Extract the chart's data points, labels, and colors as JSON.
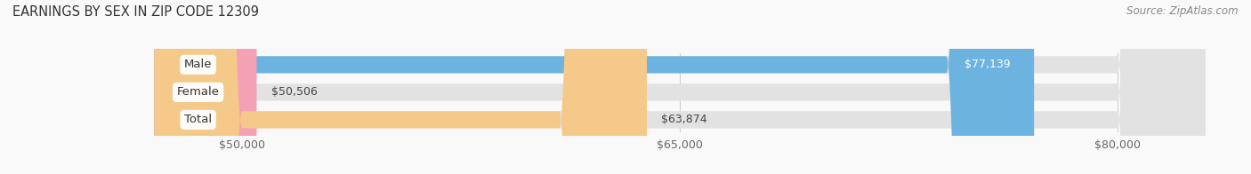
{
  "title": "EARNINGS BY SEX IN ZIP CODE 12309",
  "source": "Source: ZipAtlas.com",
  "categories": [
    "Male",
    "Female",
    "Total"
  ],
  "values": [
    77139,
    50506,
    63874
  ],
  "bar_colors": [
    "#6db3e0",
    "#f4a0b5",
    "#f5c98a"
  ],
  "bar_bg_color": "#e2e2e2",
  "xmin": 47000,
  "xmax": 83000,
  "xticks": [
    50000,
    65000,
    80000
  ],
  "xtick_labels": [
    "$50,000",
    "$65,000",
    "$80,000"
  ],
  "background_color": "#f9f9f9",
  "bar_height": 0.62,
  "title_fontsize": 10.5,
  "tick_fontsize": 9,
  "label_fontsize": 9.5,
  "value_fontsize": 9
}
